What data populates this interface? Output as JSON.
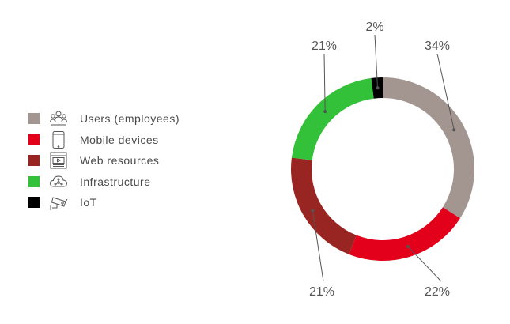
{
  "chart_data": {
    "type": "pie",
    "title": "",
    "categories": [
      "Users (employees)",
      "Mobile devices",
      "Web resources",
      "Infrastructure",
      "IoT"
    ],
    "values": [
      34,
      22,
      21,
      21,
      2
    ],
    "labels": [
      "34%",
      "22%",
      "21%",
      "21%",
      "2%"
    ],
    "colors": [
      "#a39590",
      "#e3001b",
      "#982521",
      "#33c13a",
      "#000000"
    ],
    "donut": true,
    "legend_position": "left"
  },
  "legend": {
    "items": [
      {
        "label": "Users (employees)",
        "color": "#a39590",
        "icon": "users-icon"
      },
      {
        "label": "Mobile devices",
        "color": "#e3001b",
        "icon": "mobile-device-icon"
      },
      {
        "label": "Web resources",
        "color": "#982521",
        "icon": "web-browser-icon"
      },
      {
        "label": "Infrastructure",
        "color": "#33c13a",
        "icon": "cloud-network-icon"
      },
      {
        "label": "IoT",
        "color": "#000000",
        "icon": "security-camera-icon"
      }
    ]
  }
}
